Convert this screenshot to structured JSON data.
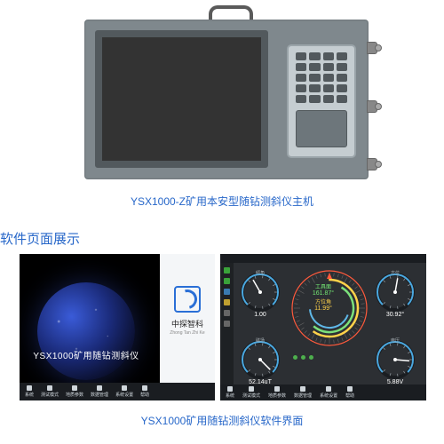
{
  "device_caption": "YSX1000-Z矿用本安型随钻测斜仪主机",
  "section_title": "软件页面展示",
  "software_caption": "YSX1000矿用随钻测斜仪软件界面",
  "splash": {
    "product_title": "YSX1000矿用随钻测斜仪",
    "brand": "中探智科",
    "brand_sub": "Zhong Tan Zhi Ke"
  },
  "bottom_bar": [
    {
      "label": "系统"
    },
    {
      "label": "测试模式"
    },
    {
      "label": "地质参数"
    },
    {
      "label": "数据管理"
    },
    {
      "label": "系统设置"
    },
    {
      "label": "帮助"
    }
  ],
  "gauges": {
    "g1": {
      "name": "倾角",
      "value": "1.00",
      "angle": 15,
      "color": "#4aa8e0"
    },
    "g2": {
      "name": "方位",
      "value": "30.92",
      "angle": 55,
      "color": "#4aa8e0",
      "unit": "°"
    },
    "g3": {
      "name": "磁场",
      "value": "52.14uT",
      "angle": 180,
      "color": "#4aa8e0"
    },
    "g4": {
      "name": "电压",
      "value": "5.88V",
      "angle": 140,
      "color": "#4aa8e0"
    }
  },
  "compass": {
    "label1": "工具面",
    "value1": "161.87°",
    "label2": "方位角",
    "value2": "11.99°",
    "colors": {
      "outer": "#ff5a3c",
      "mid1": "#ffd24a",
      "mid2": "#7be07b",
      "inner": "#5fb8e8"
    }
  },
  "colors": {
    "caption": "#2767c9",
    "device_body": "#7f888d",
    "dark_panel": "#2c2f33"
  }
}
